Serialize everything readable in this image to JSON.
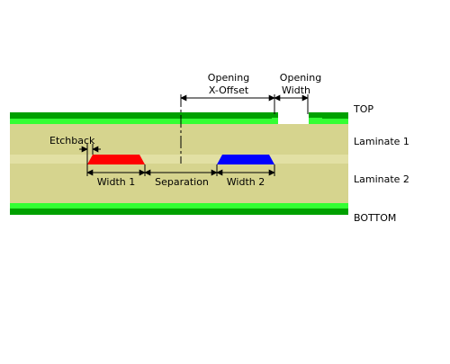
{
  "labels": {
    "opening_xoffset_line1": "Opening",
    "opening_xoffset_line2": "X-Offset",
    "opening_width_line1": "Opening",
    "opening_width_line2": "Width",
    "top": "TOP",
    "laminate1": "Laminate 1",
    "laminate2": "Laminate 2",
    "bottom": "BOTTOM",
    "etchback": "Etchback",
    "width1": "Width 1",
    "separation": "Separation",
    "width2": "Width 2"
  },
  "colors": {
    "copper_dark": "#00A000",
    "copper_light": "#33FF33",
    "laminate": "#D6D48E",
    "laminate_band": "#E2E0A4",
    "trace1": "#FF0000",
    "trace2": "#0000FF",
    "opening": "#FFFFFF"
  }
}
